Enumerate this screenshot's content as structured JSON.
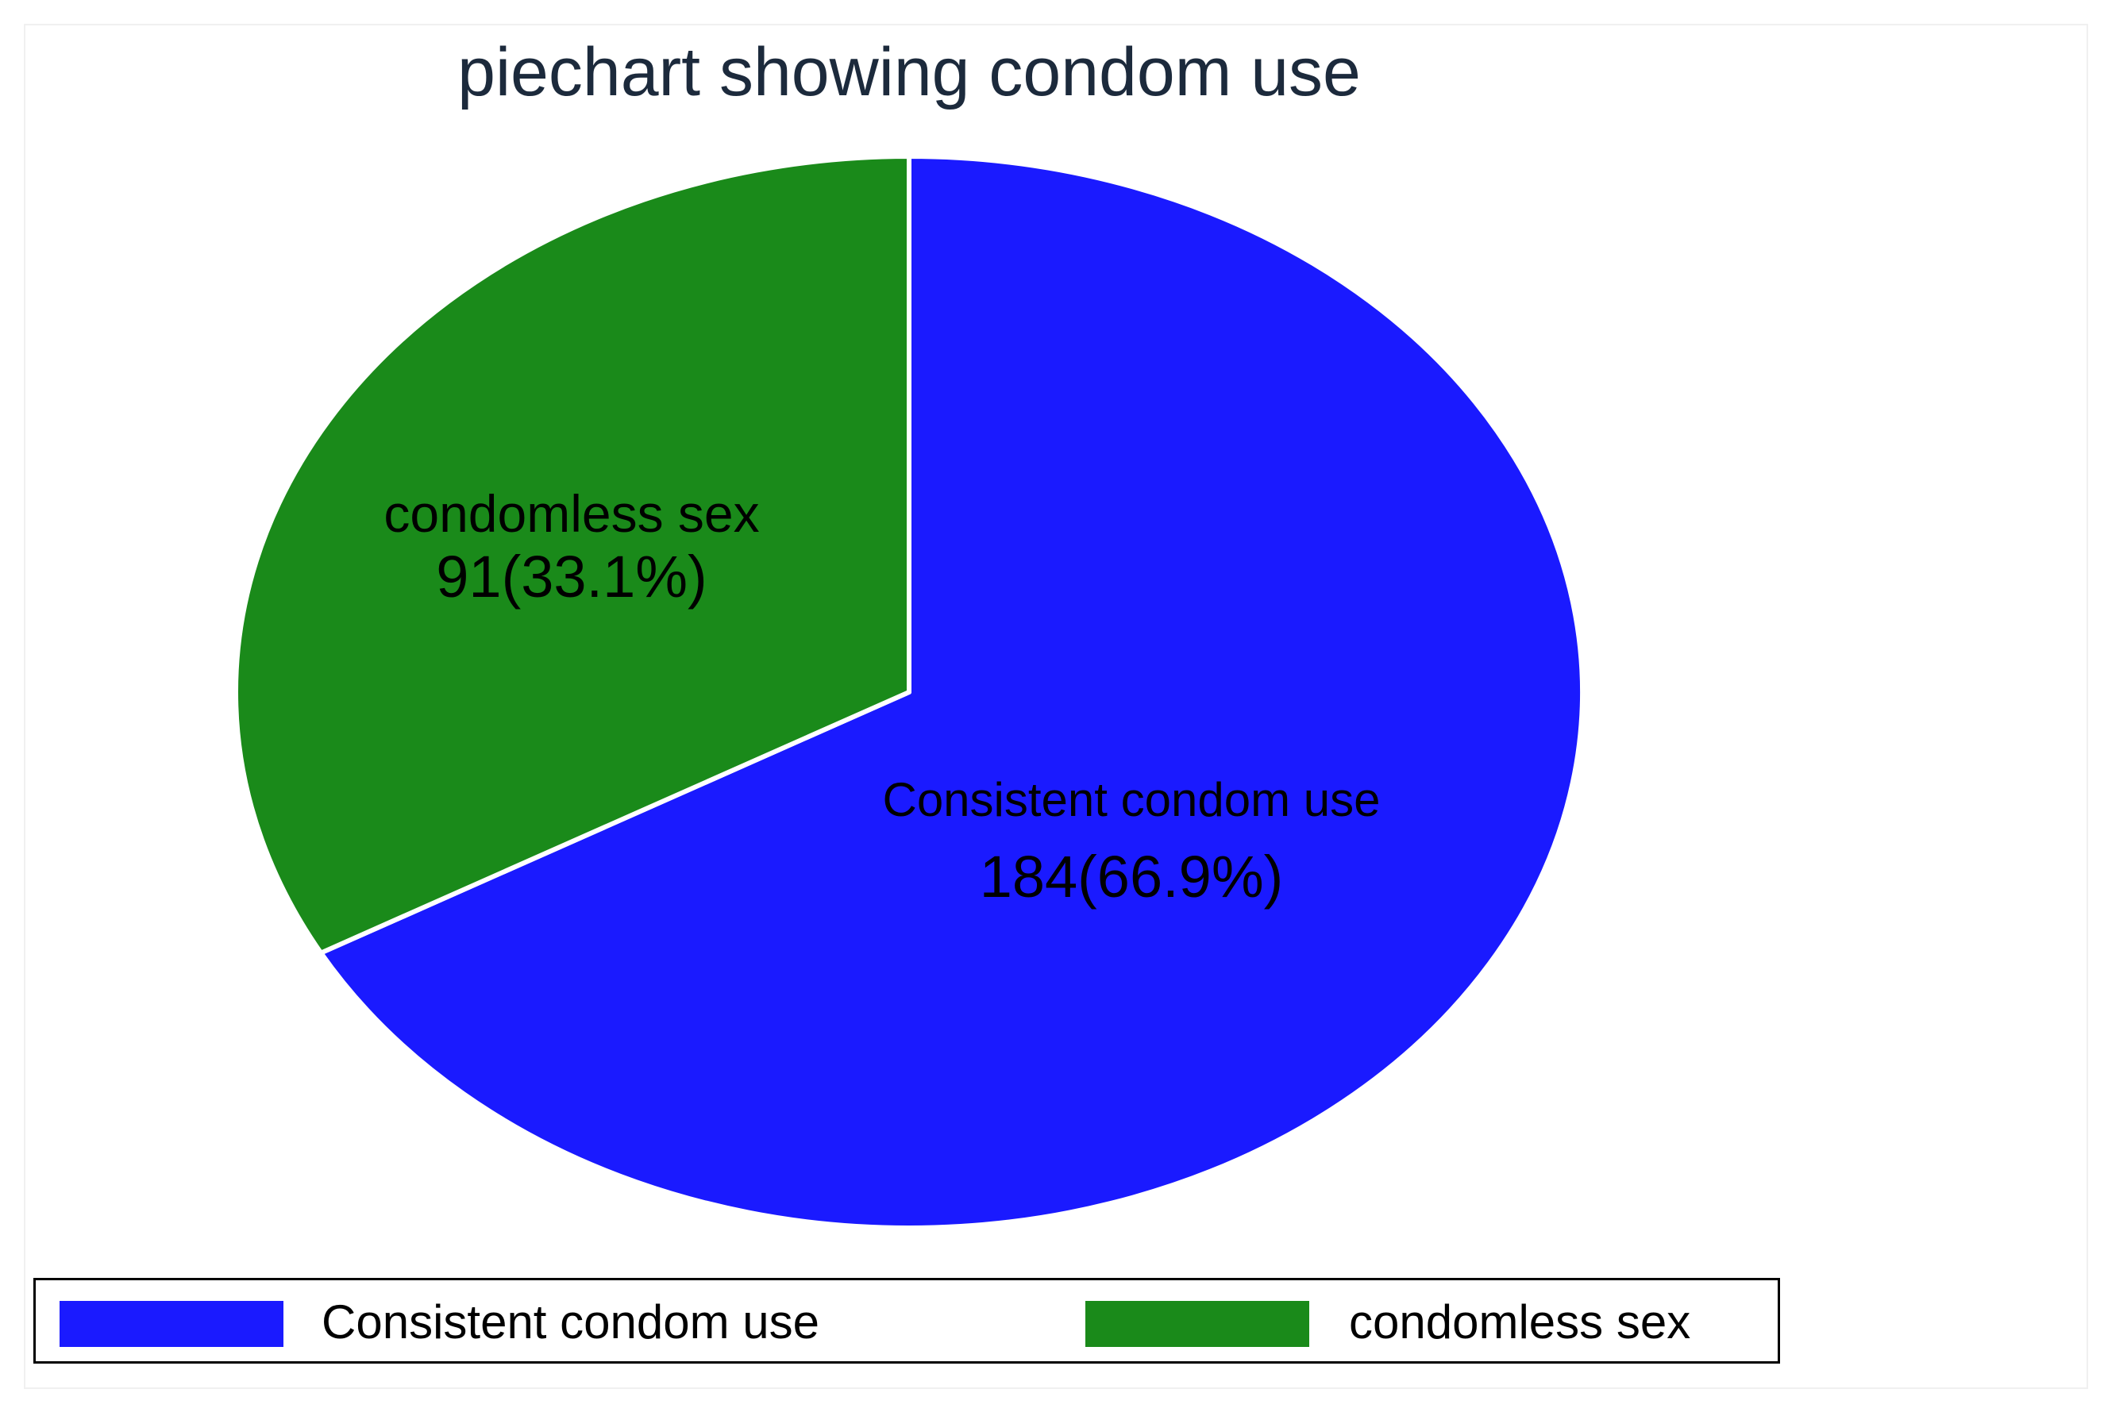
{
  "chart_data": {
    "type": "pie",
    "title": "piechart showing condom use",
    "start_angle_deg": 0,
    "direction": "clockwise",
    "legend_position": "bottom",
    "slices": [
      {
        "name": "Consistent condom use",
        "count": 184,
        "percent": 66.9,
        "label_line1": "Consistent condom use",
        "label_line2": "184(66.9%)",
        "color": "#1a1aff"
      },
      {
        "name": "condomless sex",
        "count": 91,
        "percent": 33.1,
        "label_line1": "condomless sex",
        "label_line2": "91(33.1%)",
        "color": "#1a8a1a"
      }
    ]
  },
  "legend": {
    "items": [
      {
        "label": "Consistent condom use",
        "color": "#1a1aff"
      },
      {
        "label": "condomless sex",
        "color": "#1a8a1a"
      }
    ]
  }
}
